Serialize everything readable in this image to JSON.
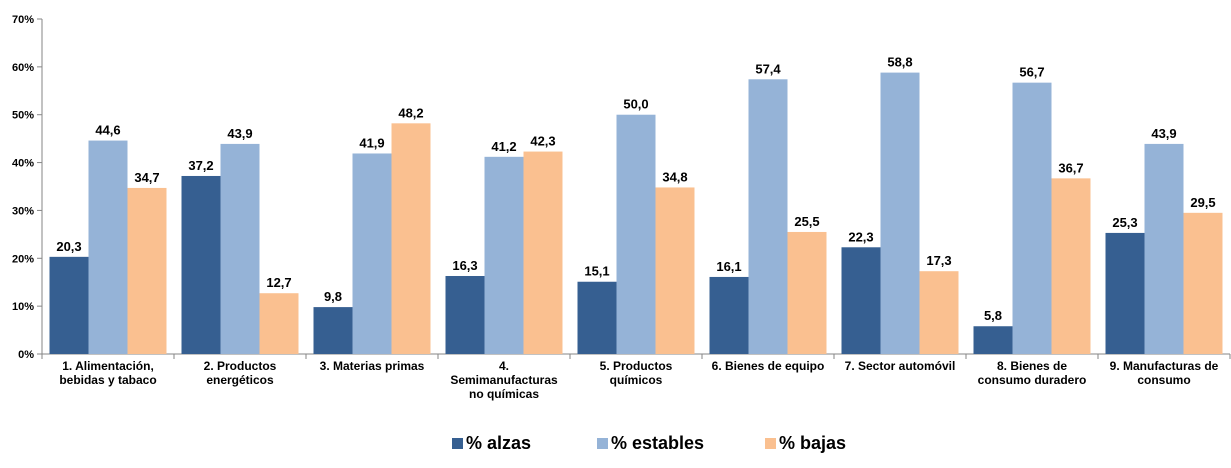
{
  "chart_data": {
    "type": "bar",
    "categories": [
      "1. Alimentación, bebidas y tabaco",
      "2. Productos energéticos",
      "3. Materias primas",
      "4. Semimanufacturas no químicas",
      "5. Productos químicos",
      "6. Bienes de equipo",
      "7. Sector automóvil",
      "8. Bienes de consumo duradero",
      "9. Manufacturas de consumo"
    ],
    "category_label_lines": [
      [
        "1. Alimentación,",
        "bebidas y tabaco"
      ],
      [
        "2. Productos",
        "energéticos"
      ],
      [
        "3. Materias primas"
      ],
      [
        "4.",
        "Semimanufacturas",
        "no químicas"
      ],
      [
        "5. Productos",
        "químicos"
      ],
      [
        "6. Bienes de equipo"
      ],
      [
        "7. Sector automóvil"
      ],
      [
        "8. Bienes de",
        "consumo duradero"
      ],
      [
        "9. Manufacturas de",
        "consumo"
      ]
    ],
    "series": [
      {
        "name": "% alzas",
        "color": "#365F91",
        "values": [
          20.3,
          37.2,
          9.8,
          16.3,
          15.1,
          16.1,
          22.3,
          5.8,
          25.3
        ],
        "labels": [
          "20,3",
          "37,2",
          "9,8",
          "16,3",
          "15,1",
          "16,1",
          "22,3",
          "5,8",
          "25,3"
        ]
      },
      {
        "name": "% estables",
        "color": "#95B3D7",
        "values": [
          44.6,
          43.9,
          41.9,
          41.2,
          50.0,
          57.4,
          58.8,
          56.7,
          43.9
        ],
        "labels": [
          "44,6",
          "43,9",
          "41,9",
          "41,2",
          "50,0",
          "57,4",
          "58,8",
          "56,7",
          "43,9"
        ]
      },
      {
        "name": "% bajas",
        "color": "#FAC090",
        "values": [
          34.7,
          12.7,
          48.2,
          42.3,
          34.8,
          25.5,
          17.3,
          36.7,
          29.5
        ],
        "labels": [
          "34,7",
          "12,7",
          "48,2",
          "42,3",
          "34,8",
          "25,5",
          "17,3",
          "36,7",
          "29,5"
        ]
      }
    ],
    "ylim": [
      0,
      70
    ],
    "y_ticks": [
      0,
      10,
      20,
      30,
      40,
      50,
      60,
      70
    ],
    "y_tick_labels": [
      "0%",
      "10%",
      "20%",
      "30%",
      "40%",
      "50%",
      "60%",
      "70%"
    ],
    "gridlines": false,
    "legend_position": "bottom-center",
    "title": "",
    "xlabel": "",
    "ylabel": ""
  }
}
